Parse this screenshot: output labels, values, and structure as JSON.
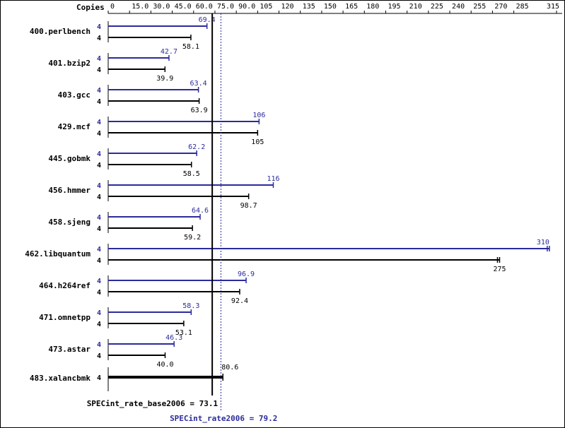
{
  "chart_data": {
    "type": "bar",
    "orientation": "horizontal",
    "copies_label": "Copies",
    "x_ticks": [
      "0",
      "15.0",
      "30.0",
      "45.0",
      "60.0",
      "75.0",
      "90.0",
      "105",
      "120",
      "135",
      "150",
      "165",
      "180",
      "195",
      "210",
      "225",
      "240",
      "255",
      "270",
      "285",
      "315"
    ],
    "xlim": [
      0,
      315
    ],
    "categories": [
      "400.perlbench",
      "401.bzip2",
      "403.gcc",
      "429.mcf",
      "445.gobmk",
      "456.hmmer",
      "458.sjeng",
      "462.libquantum",
      "464.h264ref",
      "471.omnetpp",
      "473.astar",
      "483.xalancbmk"
    ],
    "series": [
      {
        "name": "SPECint_rate2006",
        "color": "#2b2b9c",
        "copies": [
          "4",
          "4",
          "4",
          "4",
          "4",
          "4",
          "4",
          "4",
          "4",
          "4",
          "4",
          ""
        ],
        "values": [
          69.4,
          42.7,
          63.4,
          106,
          62.2,
          116,
          64.6,
          310,
          96.9,
          58.3,
          46.3,
          null
        ],
        "labels": [
          "69.4",
          "42.7",
          "63.4",
          "106",
          "62.2",
          "116",
          "64.6",
          "310",
          "96.9",
          "58.3",
          "46.3",
          ""
        ]
      },
      {
        "name": "SPECint_rate_base2006",
        "color": "#000000",
        "copies": [
          "4",
          "4",
          "4",
          "4",
          "4",
          "4",
          "4",
          "4",
          "4",
          "4",
          "4",
          "4"
        ],
        "values": [
          58.1,
          39.9,
          63.9,
          105,
          58.5,
          98.7,
          59.2,
          275,
          92.4,
          53.1,
          40.0,
          80.6
        ],
        "labels": [
          "58.1",
          "39.9",
          "63.9",
          "105",
          "58.5",
          "98.7",
          "59.2",
          "275",
          "92.4",
          "53.1",
          "40.0",
          "80.6"
        ]
      }
    ],
    "reference_lines": [
      {
        "label": "SPECint_rate_base2006 = 73.1",
        "value": 73.1,
        "color": "#000000",
        "style": "solid"
      },
      {
        "label": "SPECint_rate2006 = 79.2",
        "value": 79.2,
        "color": "#2b2b9c",
        "style": "dotted"
      }
    ]
  }
}
